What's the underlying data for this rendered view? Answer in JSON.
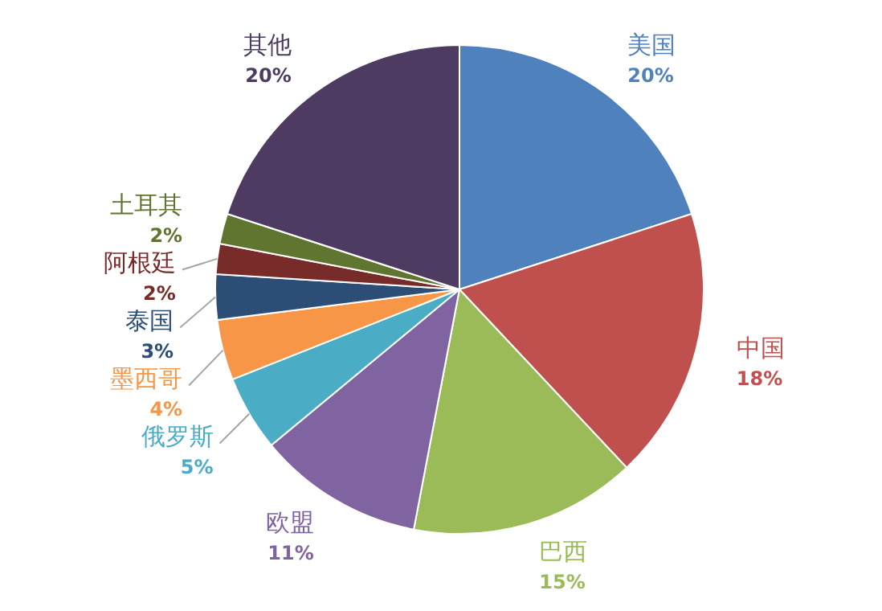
{
  "chart_data": {
    "type": "pie",
    "categories": [
      "美国",
      "中国",
      "巴西",
      "欧盟",
      "俄罗斯",
      "墨西哥",
      "泰国",
      "阿根廷",
      "土耳其",
      "其他"
    ],
    "values": [
      20,
      18,
      15,
      11,
      5,
      4,
      3,
      2,
      2,
      20
    ],
    "value_labels": [
      "20%",
      "18%",
      "15%",
      "11%",
      "5%",
      "4%",
      "3%",
      "2%",
      "2%",
      "20%"
    ],
    "colors": [
      "#4f81bd",
      "#c0504d",
      "#9bbb59",
      "#8064a2",
      "#4bacc6",
      "#f79646",
      "#2c4d75",
      "#772c2a",
      "#5f7530",
      "#4d3b62"
    ],
    "legend": false
  }
}
